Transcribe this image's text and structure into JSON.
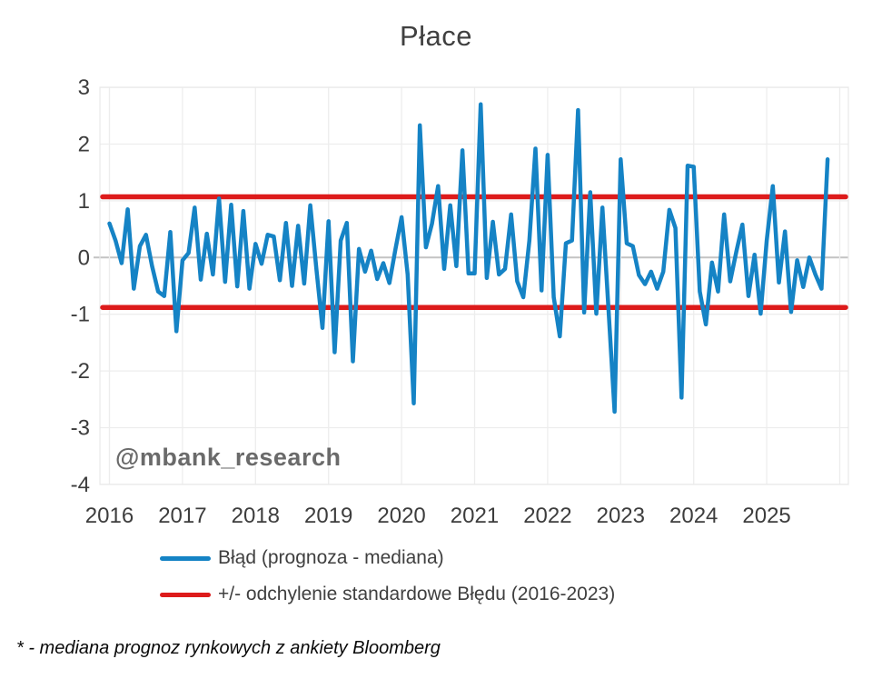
{
  "title": "Płace",
  "watermark": "@mbank_research",
  "footnote": "* - mediana prognoz rynkowych z ankiety Bloomberg",
  "legend": [
    {
      "label": "Błąd (prognoza - mediana)",
      "color": "#1583c5"
    },
    {
      "label": "+/- odchylenie standardowe Błędu (2016-2023)",
      "color": "#dd1b1b"
    }
  ],
  "colors": {
    "series_blue": "#1583c5",
    "stddev_red": "#dd1b1b",
    "gridline": "#ededed",
    "zero_line": "#c3c3c3",
    "axis_text": "#3d3d3d"
  },
  "chart_data": {
    "type": "line",
    "title": "Płace",
    "x_start": "2016-01",
    "x_frequency": "monthly",
    "x_tick_labels": [
      "2016",
      "2017",
      "2018",
      "2019",
      "2020",
      "2021",
      "2022",
      "2023",
      "2024",
      "2025"
    ],
    "y_ticks": [
      3,
      2,
      1,
      0,
      -1,
      -2,
      -3,
      -4
    ],
    "ylim": [
      -4,
      3
    ],
    "grid": true,
    "legend_position": "bottom",
    "series": [
      {
        "name": "Błąd (prognoza - mediana)",
        "color": "#1583c5",
        "values": [
          0.6,
          0.3,
          -0.1,
          0.85,
          -0.55,
          0.2,
          0.4,
          -0.15,
          -0.6,
          -0.68,
          0.45,
          -1.3,
          -0.05,
          0.08,
          0.88,
          -0.39,
          0.42,
          -0.3,
          1.04,
          -0.43,
          0.93,
          -0.51,
          0.82,
          -0.55,
          0.24,
          -0.11,
          0.4,
          0.37,
          -0.4,
          0.61,
          -0.5,
          0.56,
          -0.46,
          0.92,
          -0.2,
          -1.24,
          0.64,
          -1.67,
          0.3,
          0.61,
          -1.83,
          0.15,
          -0.25,
          0.12,
          -0.38,
          -0.1,
          -0.45,
          0.15,
          0.71,
          -0.3,
          -2.57,
          2.33,
          0.18,
          0.6,
          1.26,
          -0.2,
          0.92,
          -0.15,
          1.89,
          -0.28,
          -0.28,
          2.7,
          -0.36,
          0.63,
          -0.3,
          -0.2,
          0.76,
          -0.42,
          -0.7,
          0.3,
          1.92,
          -0.58,
          1.81,
          -0.7,
          -1.39,
          0.25,
          0.3,
          2.6,
          -0.97,
          1.15,
          -0.99,
          0.88,
          -0.91,
          -2.72,
          1.73,
          0.25,
          0.2,
          -0.31,
          -0.47,
          -0.25,
          -0.55,
          -0.25,
          0.84,
          0.52,
          -2.47,
          1.62,
          1.6,
          -0.6,
          -1.18,
          -0.09,
          -0.6,
          0.76,
          -0.42,
          0.1,
          0.58,
          -0.68,
          0.05,
          -0.99,
          0.3,
          1.26,
          -0.44,
          0.46,
          -0.96,
          -0.05,
          -0.52,
          0.0,
          -0.3,
          -0.55,
          1.73
        ]
      }
    ],
    "reference_lines": [
      {
        "name": "+/- odchylenie standardowe Błędu (2016-2023)",
        "color": "#dd1b1b",
        "values": [
          1.07,
          -0.88
        ]
      }
    ]
  }
}
